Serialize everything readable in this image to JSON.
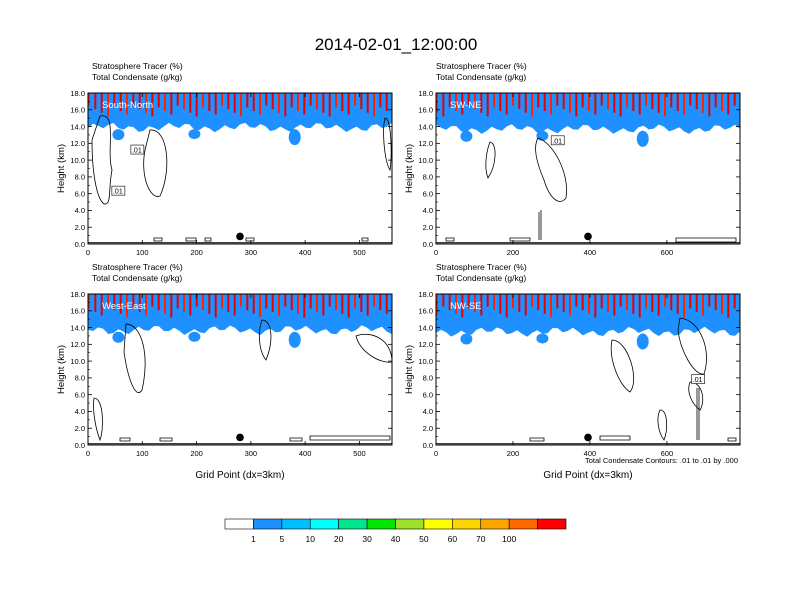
{
  "title": "2014-02-01_12:00:00",
  "subtitle_line1": "Stratosphere Tracer   (%)",
  "subtitle_line2": "Total Condensate   (g/kg)",
  "contour_note": "Total Condensate Contours: .01 to .01 by .000",
  "contour_label": ".01",
  "colors": {
    "levels": [
      "#ffffff",
      "#1e90ff",
      "#00bfff",
      "#00ffff",
      "#00e68c",
      "#00e600",
      "#9ee02b",
      "#ffff00",
      "#ffd700",
      "#ffa500",
      "#ff6a00",
      "#ff0000"
    ]
  },
  "chart_data": [
    {
      "type": "heatmap",
      "panel_label": "South-North",
      "ylabel": "Height (km)",
      "xlabel": "",
      "xlim": [
        0,
        560
      ],
      "ylim": [
        0,
        18
      ],
      "xticks": [
        "0",
        "100",
        "200",
        "300",
        "400",
        "500"
      ],
      "yticks": [
        "0.0",
        "2.0",
        "4.0",
        "6.0",
        "8.0",
        "10.0",
        "12.0",
        "14.0",
        "16.0",
        "18.0"
      ],
      "tropopause_km": 15.2,
      "marker_x": 280,
      "contour_labels": [
        [
          90,
          11.2
        ],
        [
          55,
          6.3
        ]
      ]
    },
    {
      "type": "heatmap",
      "panel_label": "SW-NE",
      "ylabel": "Height (km)",
      "xlabel": "",
      "xlim": [
        0,
        790
      ],
      "ylim": [
        0,
        18
      ],
      "xticks": [
        "0",
        "200",
        "400",
        "600"
      ],
      "yticks": [
        "0.0",
        "2.0",
        "4.0",
        "6.0",
        "8.0",
        "10.0",
        "12.0",
        "14.0",
        "16.0",
        "18.0"
      ],
      "tropopause_km": 15.0,
      "marker_x": 395,
      "contour_labels": [
        [
          315,
          12.3
        ]
      ]
    },
    {
      "type": "heatmap",
      "panel_label": "West-East",
      "ylabel": "Height (km)",
      "xlabel": "Grid Point (dx=3km)",
      "xlim": [
        0,
        560
      ],
      "ylim": [
        0,
        18
      ],
      "xticks": [
        "0",
        "100",
        "200",
        "300",
        "400",
        "500"
      ],
      "yticks": [
        "0.0",
        "2.0",
        "4.0",
        "6.0",
        "8.0",
        "10.0",
        "12.0",
        "14.0",
        "16.0",
        "18.0"
      ],
      "tropopause_km": 15.0,
      "marker_x": 280,
      "contour_labels": []
    },
    {
      "type": "heatmap",
      "panel_label": "NW-SE",
      "ylabel": "Height (km)",
      "xlabel": "Grid Point (dx=3km)",
      "xlim": [
        0,
        790
      ],
      "ylim": [
        0,
        18
      ],
      "xticks": [
        "0",
        "200",
        "400",
        "600"
      ],
      "yticks": [
        "0.0",
        "2.0",
        "4.0",
        "6.0",
        "8.0",
        "10.0",
        "12.0",
        "14.0",
        "16.0",
        "18.0"
      ],
      "tropopause_km": 14.8,
      "marker_x": 395,
      "contour_labels": [
        [
          680,
          7.8
        ]
      ]
    }
  ],
  "colorbar": {
    "labels": [
      "1",
      "5",
      "10",
      "20",
      "30",
      "40",
      "50",
      "60",
      "70",
      "100"
    ]
  }
}
